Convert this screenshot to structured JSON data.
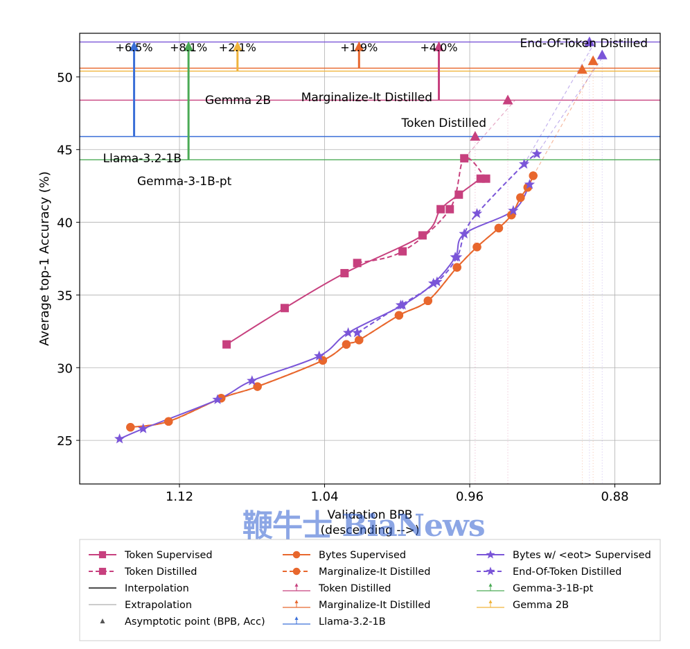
{
  "watermark": "鞭牛士 BiaNews",
  "colors": {
    "token": "#c7407e",
    "bytes": "#e8672d",
    "eot": "#7a55d8",
    "llama": "#3b6fd8",
    "gemma3": "#4aaa55",
    "gemma2": "#f0b43c",
    "margTri": "#e8672d",
    "eotHline": "#7a55d8"
  },
  "chart_data": {
    "type": "line",
    "xlabel": "Validation BPB\n(descending -->)",
    "ylabel": "Average top-1 Accuracy (%)",
    "xlim": [
      1.175,
      0.855
    ],
    "ylim": [
      22,
      53
    ],
    "xticks": [
      1.12,
      1.04,
      0.96,
      0.88
    ],
    "xtick_labels": [
      "1.12",
      "1.04",
      "0.96",
      "0.88"
    ],
    "yticks": [
      25,
      30,
      35,
      40,
      45,
      50
    ],
    "ytick_labels": [
      "25",
      "30",
      "35",
      "40",
      "45",
      "50"
    ],
    "grid": true,
    "series": [
      {
        "name": "Token Supervised",
        "key": "token",
        "style": "solid",
        "marker": "square",
        "x": [
          1.094,
          1.062,
          1.029,
          0.986,
          0.976,
          0.966,
          0.954
        ],
        "y": [
          31.6,
          34.1,
          36.5,
          39.1,
          40.9,
          41.9,
          43.0
        ]
      },
      {
        "name": "Token Distilled",
        "key": "token",
        "style": "dashed",
        "marker": "square",
        "x": [
          1.022,
          0.997,
          0.971,
          0.951,
          0.963
        ],
        "y": [
          37.2,
          38.0,
          40.9,
          43.0,
          44.4
        ]
      },
      {
        "name": "Bytes Supervised",
        "key": "bytes",
        "style": "solid",
        "marker": "circle",
        "x": [
          1.147,
          1.126,
          1.097,
          1.077,
          1.041,
          1.028,
          1.021,
          0.999,
          0.983,
          0.967,
          0.956,
          0.944,
          0.937,
          0.932,
          0.928,
          0.925
        ],
        "y": [
          25.9,
          26.3,
          27.9,
          28.7,
          30.5,
          31.6,
          31.9,
          33.6,
          34.6,
          36.9,
          38.3,
          39.6,
          40.5,
          41.7,
          42.4,
          43.2
        ]
      },
      {
        "name": "Marginalize-It Distilled",
        "key": "bytes",
        "style": "dashed",
        "marker": "circle",
        "x": [
          1.147,
          1.126,
          1.097,
          1.077,
          1.041,
          1.028,
          1.021,
          0.999,
          0.983,
          0.967,
          0.956,
          0.944,
          0.937,
          0.932,
          0.928,
          0.925
        ],
        "y": [
          25.9,
          26.3,
          27.9,
          28.7,
          30.5,
          31.6,
          31.9,
          33.6,
          34.6,
          36.9,
          38.3,
          39.6,
          40.5,
          41.7,
          42.4,
          43.2
        ]
      },
      {
        "name": "Bytes w/ <eot> Supervised",
        "key": "eot",
        "style": "solid",
        "marker": "star",
        "x": [
          1.153,
          1.14,
          1.099,
          1.08,
          1.043,
          1.027,
          0.997,
          0.98,
          0.968,
          0.963,
          0.936,
          0.927
        ],
        "y": [
          25.1,
          25.8,
          27.8,
          29.1,
          30.8,
          32.4,
          34.3,
          35.8,
          37.6,
          39.2,
          40.8,
          42.6
        ]
      },
      {
        "name": "End-Of-Token Distilled",
        "key": "eot",
        "style": "dashed",
        "marker": "star",
        "x": [
          1.022,
          0.998,
          0.978,
          0.967,
          0.963,
          0.956,
          0.93,
          0.923
        ],
        "y": [
          32.4,
          34.3,
          35.9,
          37.6,
          39.2,
          40.6,
          44.0,
          44.7
        ]
      }
    ],
    "extrapolation": [
      {
        "key": "token",
        "x": [
          0.963,
          0.935
        ],
        "y": [
          44.4,
          48.4
        ]
      },
      {
        "key": "bytes",
        "x": [
          0.925,
          0.892
        ],
        "y": [
          43.2,
          50.5
        ]
      },
      {
        "key": "eot",
        "x": [
          0.923,
          0.886
        ],
        "y": [
          44.7,
          51.5
        ]
      },
      {
        "key": "eot",
        "x": [
          0.93,
          0.891
        ],
        "y": [
          44.0,
          52.4
        ]
      }
    ],
    "asymptotes": [
      {
        "key": "token",
        "x": 0.957,
        "y": 45.9
      },
      {
        "key": "token",
        "x": 0.939,
        "y": 48.4
      },
      {
        "key": "bytes",
        "x": 0.898,
        "y": 50.5
      },
      {
        "key": "bytes",
        "x": 0.892,
        "y": 51.1
      },
      {
        "key": "eot",
        "x": 0.887,
        "y": 51.5
      },
      {
        "key": "eot",
        "x": 0.894,
        "y": 52.4
      }
    ],
    "hlines": [
      {
        "key": "eotHline",
        "y": 52.4,
        "label": "End-Of-Token Distilled"
      },
      {
        "key": "bytes",
        "y": 50.6,
        "label": "Marginalize-It Distilled"
      },
      {
        "key": "gemma2",
        "y": 50.4,
        "label": "Gemma 2B"
      },
      {
        "key": "token",
        "y": 48.4,
        "label": "Token Distilled"
      },
      {
        "key": "llama",
        "y": 45.9,
        "label": "Llama-3.2-1B"
      },
      {
        "key": "gemma3",
        "y": 44.3,
        "label": "Gemma-3-1B-pt"
      }
    ],
    "arrows": [
      {
        "key": "llama",
        "x": 1.145,
        "y_from": 45.9,
        "y_to": 52.4,
        "label": "+6.5%"
      },
      {
        "key": "gemma3",
        "x": 1.115,
        "y_from": 44.3,
        "y_to": 52.4,
        "label": "+8.1%"
      },
      {
        "key": "gemma2",
        "x": 1.088,
        "y_from": 50.4,
        "y_to": 52.4,
        "label": "+2.1%"
      },
      {
        "key": "bytes",
        "x": 1.021,
        "y_from": 50.6,
        "y_to": 52.4,
        "label": "+1.9%"
      },
      {
        "key": "token",
        "x": 0.977,
        "y_from": 48.4,
        "y_to": 52.4,
        "label": "+4.0%"
      }
    ],
    "legend": {
      "placement": "bottom",
      "entries": [
        {
          "label": "Token Supervised",
          "key": "token",
          "kind": "line-marker",
          "style": "solid",
          "marker": "square"
        },
        {
          "label": "Token Distilled",
          "key": "token",
          "kind": "line-marker",
          "style": "dashed",
          "marker": "square"
        },
        {
          "label": "Interpolation",
          "key": "grey",
          "kind": "line",
          "style": "solid"
        },
        {
          "label": "Extrapolation",
          "key": "lightgrey",
          "kind": "line",
          "style": "solid"
        },
        {
          "label": "Asymptotic point (BPB, Acc)",
          "key": "grey",
          "kind": "triangle"
        },
        {
          "label": "Bytes Supervised",
          "key": "bytes",
          "kind": "line-marker",
          "style": "solid",
          "marker": "circle"
        },
        {
          "label": "Marginalize-It Distilled",
          "key": "bytes",
          "kind": "line-marker",
          "style": "dashed",
          "marker": "circle"
        },
        {
          "label": "Token Distilled",
          "key": "token",
          "kind": "arrow-line"
        },
        {
          "label": "Marginalize-It Distilled",
          "key": "bytes",
          "kind": "arrow-line"
        },
        {
          "label": "Llama-3.2-1B",
          "key": "llama",
          "kind": "arrow-line"
        },
        {
          "label": "Bytes w/ <eot> Supervised",
          "key": "eot",
          "kind": "line-marker",
          "style": "solid",
          "marker": "star"
        },
        {
          "label": "End-Of-Token Distilled",
          "key": "eot",
          "kind": "line-marker",
          "style": "dashed",
          "marker": "star"
        },
        {
          "label": "Gemma-3-1B-pt",
          "key": "gemma3",
          "kind": "arrow-line"
        },
        {
          "label": "Gemma 2B",
          "key": "gemma2",
          "kind": "arrow-line"
        }
      ]
    }
  }
}
